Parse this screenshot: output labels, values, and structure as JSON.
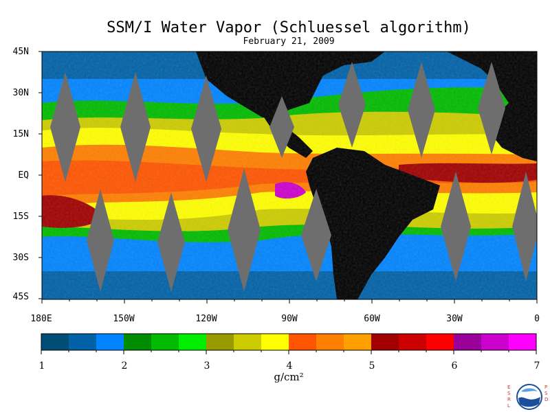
{
  "title": "SSM/I Water Vapor (Schluessel algorithm)",
  "subtitle": "February 21, 2009",
  "latitude_ticks": [
    "45N",
    "30N",
    "15N",
    "EQ",
    "15S",
    "30S",
    "45S"
  ],
  "longitude_ticks": [
    "180E",
    "150W",
    "120W",
    "90W",
    "60W",
    "30W",
    "0"
  ],
  "colorbar": {
    "units": "g/cm²",
    "tick_labels": [
      "1",
      "2",
      "3",
      "4",
      "5",
      "6",
      "7"
    ],
    "range": [
      1,
      7
    ],
    "colors": [
      "#004e76",
      "#0061a6",
      "#0084ff",
      "#008c00",
      "#00bb00",
      "#00ee00",
      "#999900",
      "#cccc00",
      "#ffff00",
      "#ff5500",
      "#ff7f00",
      "#ffa000",
      "#a00000",
      "#cc0000",
      "#ff0000",
      "#990099",
      "#cc00cc",
      "#ff00ff"
    ]
  },
  "palette": {
    "land": "#000000",
    "missing_swath": "#6e6e6e"
  },
  "logo": {
    "left_letters": "ESRL",
    "right_letters": "PSD"
  }
}
